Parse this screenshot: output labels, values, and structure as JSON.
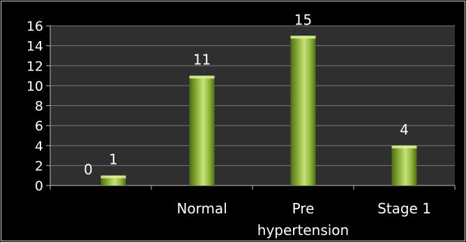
{
  "chart_data": {
    "type": "bar",
    "categories": [
      "",
      "Normal",
      "Pre\nhypertension",
      "Stage 1"
    ],
    "series": [
      {
        "values": [
          0,
          11,
          15,
          4
        ]
      },
      {
        "values": [
          1,
          null,
          null,
          null
        ]
      }
    ],
    "data_labels": [
      "0",
      "1",
      "11",
      "15",
      "4"
    ],
    "y_ticks": [
      "0",
      "2",
      "4",
      "6",
      "8",
      "10",
      "12",
      "14",
      "16"
    ],
    "ylim": [
      0,
      16
    ],
    "grid": true,
    "colors": {
      "bar_light": "#c8e27a",
      "bar_mid": "#8db33a",
      "bar_dark": "#4f6b16",
      "plot_bg": "#2f2f2f",
      "grid": "#7a7a7a"
    }
  }
}
